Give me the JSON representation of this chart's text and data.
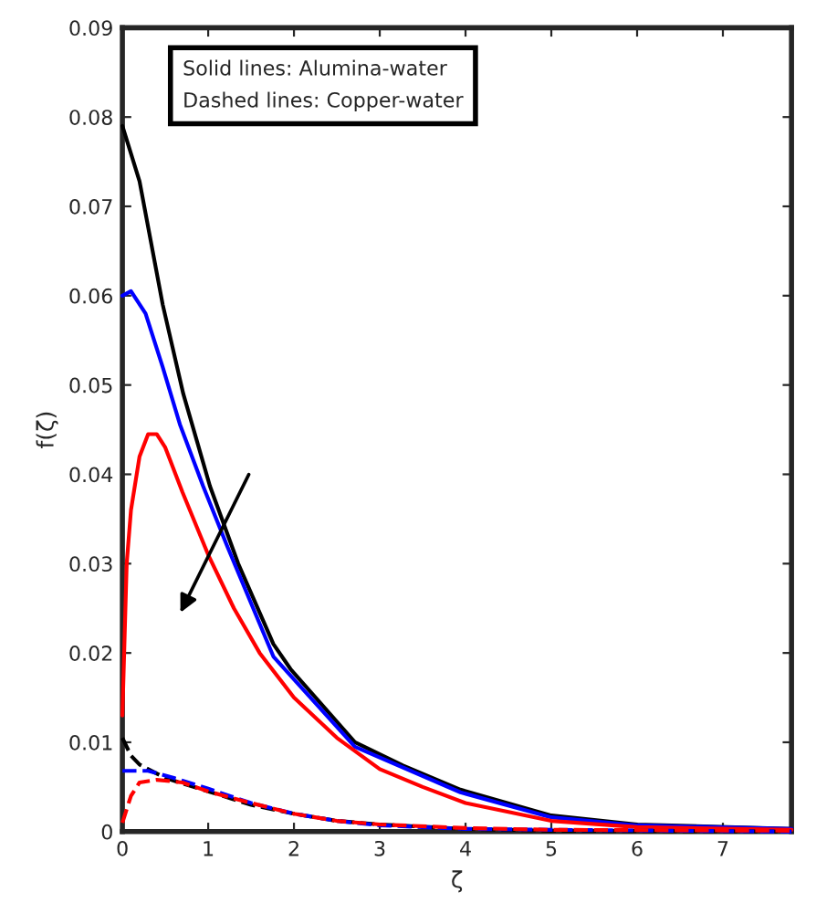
{
  "chart_data": {
    "type": "line",
    "xlabel": "ζ",
    "ylabel": "f(ζ)",
    "xlim": [
      0,
      7.8
    ],
    "xticks": [
      0,
      1,
      2,
      3,
      4,
      5,
      6,
      7
    ],
    "ylim": [
      0,
      0.09
    ],
    "yticks": [
      0,
      0.01,
      0.02,
      0.03,
      0.04,
      0.05,
      0.06,
      0.07,
      0.08,
      0.09
    ],
    "grid": false,
    "marker": "none",
    "annotations": [
      "Solid lines: Alumina-water",
      "Dashed lines: Copper-water"
    ],
    "series": [
      {
        "color": "#000000",
        "line_style": "solid",
        "x": [
          0,
          0.2,
          0.47,
          0.71,
          1.02,
          1.35,
          1.76,
          1.96,
          2.71,
          3.27,
          3.94,
          5.0,
          6.0,
          7.8
        ],
        "values": [
          0.079,
          0.0728,
          0.059,
          0.049,
          0.0387,
          0.03,
          0.021,
          0.0182,
          0.01,
          0.0074,
          0.0047,
          0.0018,
          0.0008,
          0.0003
        ]
      },
      {
        "color": "#0000ff",
        "line_style": "solid",
        "x": [
          0,
          0.1,
          0.27,
          0.47,
          0.67,
          0.94,
          1.22,
          1.76,
          2.71,
          3.94,
          5.0,
          6.0,
          7.8
        ],
        "values": [
          0.06,
          0.0605,
          0.058,
          0.052,
          0.0456,
          0.0387,
          0.032,
          0.0196,
          0.0095,
          0.0044,
          0.0016,
          0.0007,
          0.0003
        ]
      },
      {
        "color": "#ff0000",
        "line_style": "solid",
        "x": [
          0,
          0.05,
          0.1,
          0.2,
          0.3,
          0.4,
          0.5,
          0.7,
          1.0,
          1.3,
          1.6,
          2.0,
          2.5,
          3.0,
          3.5,
          4.0,
          5.0,
          6.0,
          7.8
        ],
        "values": [
          0.013,
          0.03,
          0.036,
          0.042,
          0.0445,
          0.0445,
          0.043,
          0.038,
          0.031,
          0.025,
          0.02,
          0.015,
          0.0105,
          0.007,
          0.005,
          0.0032,
          0.0012,
          0.0005,
          0.0002
        ]
      },
      {
        "color": "#000000",
        "line_style": "dashed",
        "x": [
          0,
          0.1,
          0.2,
          0.5,
          1,
          1.5,
          2,
          2.5,
          3,
          4,
          5,
          7.8
        ],
        "values": [
          0.0105,
          0.0085,
          0.0075,
          0.006,
          0.0045,
          0.003,
          0.002,
          0.0012,
          0.0008,
          0.0003,
          0.0001,
          0.0
        ]
      },
      {
        "color": "#0000ff",
        "line_style": "dashed",
        "x": [
          0,
          0.3,
          0.6,
          1,
          1.5,
          2,
          2.5,
          3,
          4,
          5,
          7.8
        ],
        "values": [
          0.0068,
          0.0068,
          0.006,
          0.0048,
          0.0032,
          0.002,
          0.0012,
          0.0007,
          0.0003,
          0.0002,
          0.0
        ]
      },
      {
        "color": "#ff0000",
        "line_style": "dashed",
        "x": [
          0,
          0.1,
          0.2,
          0.4,
          0.7,
          1,
          1.5,
          2,
          2.5,
          3,
          4,
          5,
          7.8
        ],
        "values": [
          0.001,
          0.004,
          0.0055,
          0.0058,
          0.0055,
          0.0045,
          0.0032,
          0.002,
          0.0012,
          0.0008,
          0.0004,
          0.0002,
          0.0001
        ]
      }
    ]
  }
}
